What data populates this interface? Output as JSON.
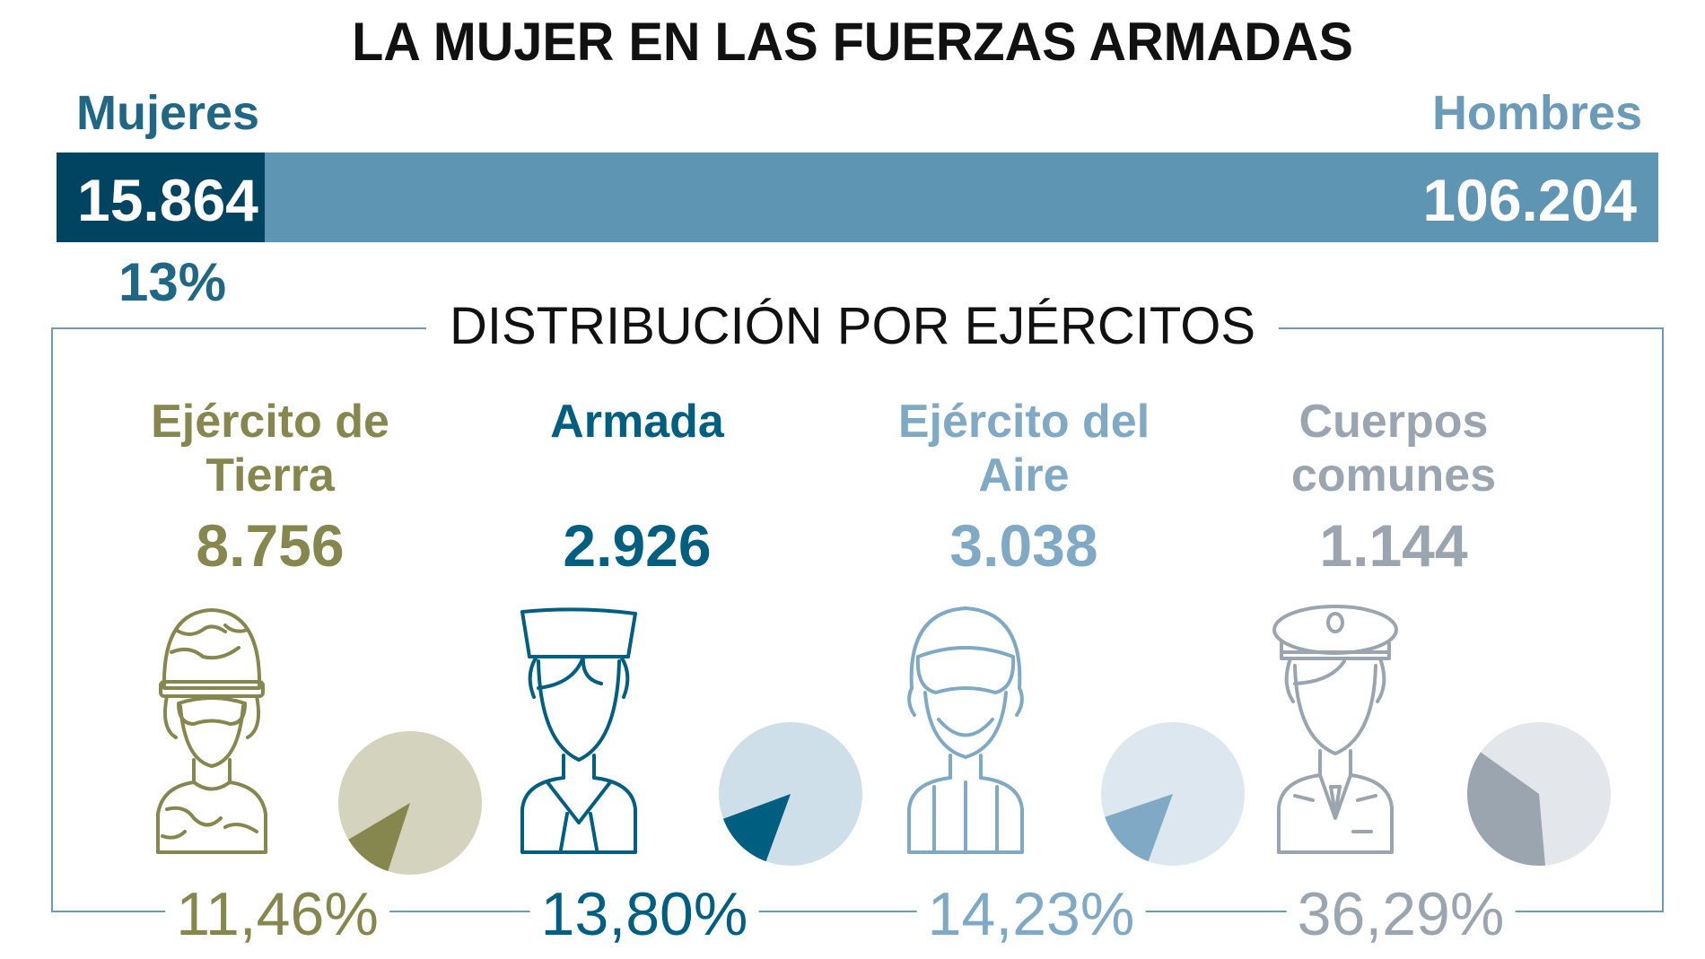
{
  "title": "LA MUJER EN LAS FUERZAS ARMADAS",
  "totals": {
    "women_label": "Mujeres",
    "men_label": "Hombres",
    "women_value": "15.864",
    "men_value": "106.204",
    "women_pct": "13%",
    "colors": {
      "women": "#004461",
      "men": "#5e95b3"
    }
  },
  "subtitle": "DISTRIBUCIÓN POR EJÉRCITOS",
  "branches": [
    {
      "name": "Ejército de Tierra",
      "value": "8.756",
      "pct": "11,46%",
      "icon": "soldier-icon",
      "color": "#86864f",
      "light": "#d4d3bd"
    },
    {
      "name": "Armada",
      "value": "2.926",
      "pct": "13,80%",
      "icon": "sailor-icon",
      "color": "#005e80",
      "light": "#cfdfe9"
    },
    {
      "name": "Ejército del Aire",
      "value": "3.038",
      "pct": "14,23%",
      "icon": "pilot-icon",
      "color": "#7fa9c4",
      "light": "#dce7ef"
    },
    {
      "name": "Cuerpos comunes",
      "value": "1.144",
      "pct": "36,29%",
      "icon": "officer-icon",
      "color": "#9aa5b0",
      "light": "#e3e6ea"
    }
  ],
  "chart_data": [
    {
      "type": "bar",
      "title": "LA MUJER EN LAS FUERZAS ARMADAS",
      "categories": [
        "Mujeres",
        "Hombres"
      ],
      "values": [
        15864,
        106204
      ],
      "stacked": true,
      "annotations": [
        "13%"
      ]
    },
    {
      "type": "pie",
      "title": "DISTRIBUCIÓN POR EJÉRCITOS",
      "categories": [
        "Ejército de Tierra",
        "Armada",
        "Ejército del Aire",
        "Cuerpos comunes"
      ],
      "values": [
        8756,
        2926,
        3038,
        1144
      ],
      "percent_women": [
        11.46,
        13.8,
        14.23,
        36.29
      ]
    }
  ]
}
